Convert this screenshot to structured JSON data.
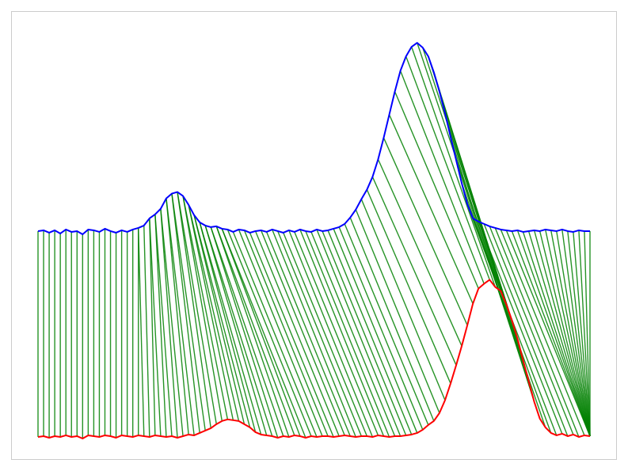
{
  "chart_data": {
    "type": "line",
    "title": "",
    "xlabel": "",
    "ylabel": "",
    "axes_visible": false,
    "grid": false,
    "legend": "none",
    "xlim": [
      0,
      99
    ],
    "ylim": [
      -2.6,
      2.5
    ],
    "colors": {
      "series_a": "#0000ff",
      "series_b": "#ff0000",
      "links": "#008000",
      "frame": "#cccccc",
      "background": "#ffffff"
    },
    "series": [
      {
        "x": [
          0,
          1,
          2,
          3,
          4,
          5,
          6,
          7,
          8,
          9,
          10,
          11,
          12,
          13,
          14,
          15,
          16,
          17,
          18,
          19,
          20,
          21,
          22,
          23,
          24,
          25,
          26,
          27,
          28,
          29,
          30,
          31,
          32,
          33,
          34,
          35,
          36,
          37,
          38,
          39,
          40,
          41,
          42,
          43,
          44,
          45,
          46,
          47,
          48,
          49,
          50,
          51,
          52,
          53,
          54,
          55,
          56,
          57,
          58,
          59,
          60,
          61,
          62,
          63,
          64,
          65,
          66,
          67,
          68,
          69,
          70,
          71,
          72,
          73,
          74,
          75,
          76,
          77,
          78,
          79,
          80,
          81,
          82,
          83,
          84,
          85,
          86,
          87,
          88,
          89,
          90,
          91,
          92,
          93,
          94,
          95,
          96,
          97,
          98,
          99
        ],
        "values": [
          0.0,
          0.01,
          -0.02,
          0.01,
          -0.03,
          0.02,
          -0.01,
          0.0,
          -0.04,
          0.02,
          0.01,
          -0.01,
          0.03,
          0.0,
          -0.02,
          0.01,
          -0.01,
          0.02,
          0.04,
          0.07,
          0.16,
          0.21,
          0.28,
          0.41,
          0.47,
          0.49,
          0.44,
          0.33,
          0.2,
          0.11,
          0.07,
          0.05,
          0.06,
          0.03,
          0.02,
          -0.01,
          0.02,
          0.01,
          -0.02,
          0.0,
          0.01,
          -0.01,
          0.02,
          0.0,
          -0.02,
          0.01,
          -0.01,
          0.02,
          0.0,
          -0.01,
          0.02,
          0.0,
          0.01,
          0.03,
          0.05,
          0.09,
          0.17,
          0.27,
          0.4,
          0.52,
          0.68,
          0.9,
          1.17,
          1.46,
          1.75,
          2.01,
          2.19,
          2.31,
          2.36,
          2.3,
          2.19,
          1.99,
          1.75,
          1.48,
          1.18,
          0.89,
          0.6,
          0.34,
          0.16,
          0.12,
          0.09,
          0.06,
          0.04,
          0.02,
          0.01,
          0.0,
          0.01,
          -0.01,
          0.0,
          0.01,
          0.0,
          0.02,
          0.01,
          0.0,
          0.02,
          0.0,
          -0.01,
          0.01,
          0.0,
          0.0
        ]
      },
      {
        "x": [
          0,
          1,
          2,
          3,
          4,
          5,
          6,
          7,
          8,
          9,
          10,
          11,
          12,
          13,
          14,
          15,
          16,
          17,
          18,
          19,
          20,
          21,
          22,
          23,
          24,
          25,
          26,
          27,
          28,
          29,
          30,
          31,
          32,
          33,
          34,
          35,
          36,
          37,
          38,
          39,
          40,
          41,
          42,
          43,
          44,
          45,
          46,
          47,
          48,
          49,
          50,
          51,
          52,
          53,
          54,
          55,
          56,
          57,
          58,
          59,
          60,
          61,
          62,
          63,
          64,
          65,
          66,
          67,
          68,
          69,
          70,
          71,
          72,
          73,
          74,
          75,
          76,
          77,
          78,
          79,
          80,
          81,
          82,
          83,
          84,
          85,
          86,
          87,
          88,
          89,
          90,
          91,
          92,
          93,
          94,
          95,
          96,
          97,
          98,
          99
        ],
        "values": [
          -2.58,
          -2.57,
          -2.59,
          -2.57,
          -2.58,
          -2.56,
          -2.58,
          -2.57,
          -2.6,
          -2.56,
          -2.57,
          -2.58,
          -2.56,
          -2.57,
          -2.59,
          -2.56,
          -2.57,
          -2.58,
          -2.56,
          -2.57,
          -2.58,
          -2.56,
          -2.57,
          -2.58,
          -2.57,
          -2.59,
          -2.57,
          -2.55,
          -2.56,
          -2.53,
          -2.5,
          -2.47,
          -2.42,
          -2.38,
          -2.36,
          -2.37,
          -2.38,
          -2.42,
          -2.46,
          -2.52,
          -2.55,
          -2.56,
          -2.57,
          -2.59,
          -2.57,
          -2.58,
          -2.56,
          -2.57,
          -2.59,
          -2.57,
          -2.58,
          -2.57,
          -2.57,
          -2.58,
          -2.57,
          -2.56,
          -2.57,
          -2.58,
          -2.57,
          -2.57,
          -2.58,
          -2.56,
          -2.57,
          -2.58,
          -2.57,
          -2.57,
          -2.56,
          -2.55,
          -2.53,
          -2.49,
          -2.43,
          -2.38,
          -2.28,
          -2.12,
          -1.91,
          -1.68,
          -1.44,
          -1.18,
          -0.91,
          -0.72,
          -0.66,
          -0.61,
          -0.7,
          -0.75,
          -0.92,
          -1.12,
          -1.35,
          -1.62,
          -1.88,
          -2.14,
          -2.35,
          -2.46,
          -2.53,
          -2.56,
          -2.54,
          -2.57,
          -2.55,
          -2.58,
          -2.56,
          -2.57
        ]
      }
    ],
    "links": [
      [
        0,
        0
      ],
      [
        1,
        1
      ],
      [
        2,
        2
      ],
      [
        3,
        3
      ],
      [
        4,
        4
      ],
      [
        5,
        5
      ],
      [
        6,
        6
      ],
      [
        7,
        7
      ],
      [
        8,
        8
      ],
      [
        9,
        9
      ],
      [
        10,
        10
      ],
      [
        11,
        11
      ],
      [
        12,
        12
      ],
      [
        13,
        13
      ],
      [
        14,
        14
      ],
      [
        15,
        15
      ],
      [
        16,
        16
      ],
      [
        17,
        17
      ],
      [
        18,
        18
      ],
      [
        18,
        19
      ],
      [
        19,
        20
      ],
      [
        20,
        21
      ],
      [
        20,
        22
      ],
      [
        21,
        23
      ],
      [
        21,
        24
      ],
      [
        22,
        25
      ],
      [
        22,
        26
      ],
      [
        23,
        27
      ],
      [
        23,
        28
      ],
      [
        24,
        29
      ],
      [
        24,
        30
      ],
      [
        25,
        31
      ],
      [
        25,
        32
      ],
      [
        26,
        33
      ],
      [
        26,
        34
      ],
      [
        27,
        35
      ],
      [
        27,
        36
      ],
      [
        28,
        37
      ],
      [
        28,
        38
      ],
      [
        29,
        39
      ],
      [
        29,
        40
      ],
      [
        30,
        41
      ],
      [
        30,
        42
      ],
      [
        31,
        43
      ],
      [
        31,
        44
      ],
      [
        32,
        45
      ],
      [
        32,
        46
      ],
      [
        33,
        47
      ],
      [
        33,
        48
      ],
      [
        34,
        49
      ],
      [
        35,
        50
      ],
      [
        36,
        51
      ],
      [
        37,
        52
      ],
      [
        38,
        53
      ],
      [
        39,
        54
      ],
      [
        40,
        55
      ],
      [
        41,
        56
      ],
      [
        42,
        57
      ],
      [
        43,
        58
      ],
      [
        44,
        59
      ],
      [
        45,
        60
      ],
      [
        46,
        61
      ],
      [
        47,
        62
      ],
      [
        48,
        63
      ],
      [
        49,
        64
      ],
      [
        50,
        65
      ],
      [
        51,
        66
      ],
      [
        52,
        67
      ],
      [
        53,
        68
      ],
      [
        54,
        69
      ],
      [
        55,
        70
      ],
      [
        56,
        71
      ],
      [
        57,
        72
      ],
      [
        58,
        73
      ],
      [
        59,
        74
      ],
      [
        60,
        75
      ],
      [
        61,
        76
      ],
      [
        62,
        77
      ],
      [
        63,
        78
      ],
      [
        64,
        79
      ],
      [
        65,
        80
      ],
      [
        66,
        81
      ],
      [
        67,
        82
      ],
      [
        68,
        83
      ],
      [
        69,
        84
      ],
      [
        70,
        85
      ],
      [
        71,
        86
      ],
      [
        72,
        87
      ],
      [
        73,
        88
      ],
      [
        74,
        89
      ],
      [
        75,
        90
      ],
      [
        76,
        91
      ],
      [
        77,
        92
      ],
      [
        78,
        93
      ],
      [
        79,
        94
      ],
      [
        80,
        95
      ],
      [
        81,
        96
      ],
      [
        82,
        97
      ],
      [
        83,
        98
      ],
      [
        84,
        99
      ],
      [
        85,
        99
      ],
      [
        86,
        99
      ],
      [
        87,
        99
      ],
      [
        88,
        99
      ],
      [
        89,
        99
      ],
      [
        90,
        99
      ],
      [
        91,
        99
      ],
      [
        92,
        99
      ],
      [
        93,
        99
      ],
      [
        94,
        99
      ],
      [
        95,
        99
      ],
      [
        96,
        99
      ],
      [
        97,
        99
      ],
      [
        98,
        99
      ],
      [
        99,
        99
      ]
    ]
  }
}
